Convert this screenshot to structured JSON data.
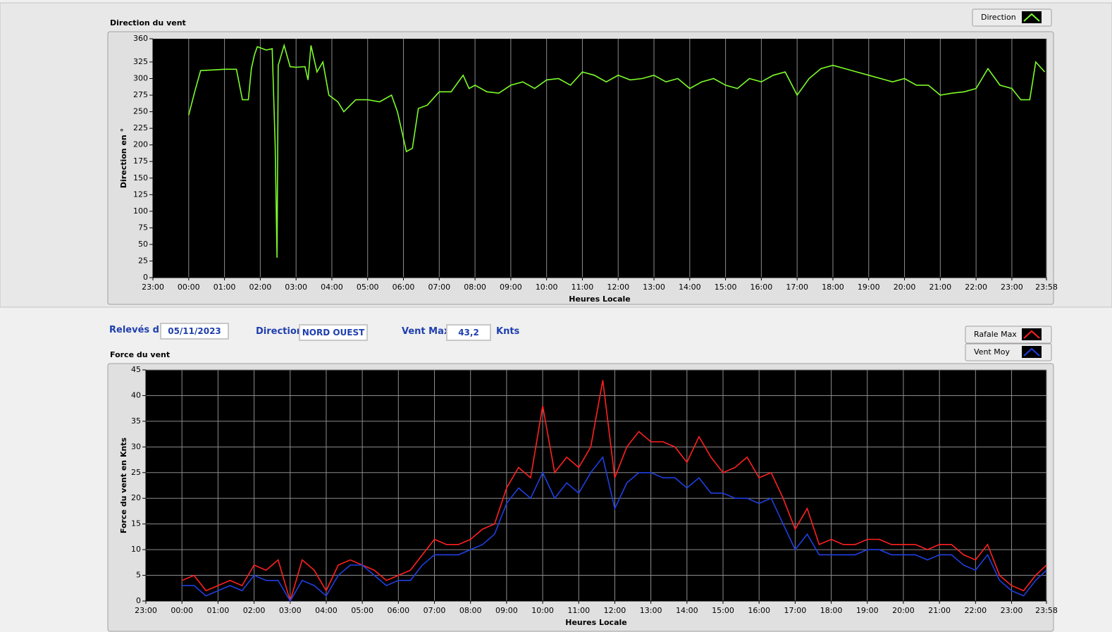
{
  "chart_data": [
    {
      "type": "line",
      "title": "Direction du vent",
      "x_label": "Heures Locale",
      "y_label": "Direction en °",
      "x": [
        "00:00",
        "00:10",
        "00:20",
        "00:40",
        "01:00",
        "01:20",
        "01:30",
        "01:40",
        "01:45",
        "01:50",
        "01:55",
        "02:10",
        "02:20",
        "02:25",
        "02:28",
        "02:30",
        "02:40",
        "02:50",
        "03:00",
        "03:15",
        "03:20",
        "03:25",
        "03:35",
        "03:45",
        "03:55",
        "04:10",
        "04:20",
        "04:40",
        "05:00",
        "05:20",
        "05:40",
        "05:50",
        "06:05",
        "06:15",
        "06:25",
        "06:40",
        "07:00",
        "07:20",
        "07:40",
        "07:50",
        "08:00",
        "08:20",
        "08:40",
        "09:00",
        "09:20",
        "09:40",
        "10:00",
        "10:20",
        "10:40",
        "11:00",
        "11:20",
        "11:40",
        "12:00",
        "12:20",
        "12:40",
        "13:00",
        "13:20",
        "13:40",
        "14:00",
        "14:20",
        "14:40",
        "15:00",
        "15:20",
        "15:40",
        "16:00",
        "16:20",
        "16:40",
        "17:00",
        "17:20",
        "17:40",
        "18:00",
        "18:20",
        "18:40",
        "19:00",
        "19:20",
        "19:40",
        "20:00",
        "20:20",
        "20:40",
        "21:00",
        "21:20",
        "21:40",
        "22:00",
        "22:20",
        "22:40",
        "23:00",
        "23:15",
        "23:30",
        "23:40",
        "23:55"
      ],
      "series": [
        {
          "name": "Direction",
          "color": "#7cfc2a",
          "values": [
            245,
            280,
            312,
            313,
            314,
            314,
            268,
            268,
            315,
            335,
            348,
            343,
            345,
            200,
            30,
            320,
            350,
            318,
            317,
            318,
            298,
            350,
            310,
            325,
            275,
            265,
            250,
            268,
            268,
            265,
            275,
            250,
            190,
            195,
            255,
            260,
            280,
            280,
            305,
            285,
            290,
            280,
            278,
            290,
            295,
            285,
            298,
            300,
            290,
            310,
            305,
            295,
            305,
            298,
            300,
            305,
            295,
            300,
            285,
            295,
            300,
            290,
            285,
            300,
            295,
            305,
            310,
            275,
            300,
            315,
            320,
            315,
            310,
            305,
            300,
            295,
            300,
            290,
            290,
            275,
            278,
            280,
            285,
            315,
            290,
            285,
            268,
            268,
            325,
            310
          ]
        }
      ],
      "xlim": [
        "23:00",
        "23:58"
      ],
      "xticks": [
        "23:00",
        "00:00",
        "01:00",
        "02:00",
        "03:00",
        "04:00",
        "05:00",
        "06:00",
        "07:00",
        "08:00",
        "09:00",
        "10:00",
        "11:00",
        "12:00",
        "13:00",
        "14:00",
        "15:00",
        "16:00",
        "17:00",
        "18:00",
        "19:00",
        "20:00",
        "21:00",
        "22:00",
        "23:00",
        "23:58"
      ],
      "ylim": [
        0,
        360
      ],
      "yticks": [
        0,
        25,
        50,
        75,
        100,
        125,
        150,
        175,
        200,
        225,
        250,
        275,
        300,
        325,
        360
      ],
      "grid_x": true,
      "grid_y": false,
      "legend": "top-right"
    },
    {
      "type": "line",
      "title": "Force du vent",
      "x_label": "Heures Locale",
      "y_label": "Force du vent en Knts",
      "x": [
        "00:00",
        "00:20",
        "00:40",
        "01:00",
        "01:20",
        "01:40",
        "02:00",
        "02:20",
        "02:40",
        "03:00",
        "03:20",
        "03:40",
        "04:00",
        "04:20",
        "04:40",
        "05:00",
        "05:20",
        "05:40",
        "06:00",
        "06:20",
        "06:40",
        "07:00",
        "07:20",
        "07:40",
        "08:00",
        "08:20",
        "08:40",
        "09:00",
        "09:20",
        "09:40",
        "10:00",
        "10:20",
        "10:40",
        "11:00",
        "11:20",
        "11:40",
        "12:00",
        "12:20",
        "12:40",
        "13:00",
        "13:20",
        "13:40",
        "14:00",
        "14:20",
        "14:40",
        "15:00",
        "15:20",
        "15:40",
        "16:00",
        "16:20",
        "16:40",
        "17:00",
        "17:20",
        "17:40",
        "18:00",
        "18:20",
        "18:40",
        "19:00",
        "19:20",
        "19:40",
        "20:00",
        "20:20",
        "20:40",
        "21:00",
        "21:20",
        "21:40",
        "22:00",
        "22:20",
        "22:40",
        "23:00",
        "23:20",
        "23:40",
        "23:58"
      ],
      "series": [
        {
          "name": "Rafale Max",
          "color": "#ff2020",
          "values": [
            4,
            5,
            2,
            3,
            4,
            3,
            7,
            6,
            8,
            0,
            8,
            6,
            2,
            7,
            8,
            7,
            6,
            4,
            5,
            6,
            9,
            12,
            11,
            11,
            12,
            14,
            15,
            22,
            26,
            24,
            38,
            25,
            28,
            26,
            30,
            43,
            24,
            30,
            33,
            31,
            31,
            30,
            27,
            32,
            28,
            25,
            26,
            28,
            24,
            25,
            20,
            14,
            18,
            11,
            12,
            11,
            11,
            12,
            12,
            11,
            11,
            11,
            10,
            11,
            11,
            9,
            8,
            11,
            5,
            3,
            2,
            5,
            7
          ]
        },
        {
          "name": "Vent Moy",
          "color": "#1f3fe0",
          "values": [
            3,
            3,
            1,
            2,
            3,
            2,
            5,
            4,
            4,
            0,
            4,
            3,
            1,
            5,
            7,
            7,
            5,
            3,
            4,
            4,
            7,
            9,
            9,
            9,
            10,
            11,
            13,
            19,
            22,
            20,
            25,
            20,
            23,
            21,
            25,
            28,
            18,
            23,
            25,
            25,
            24,
            24,
            22,
            24,
            21,
            21,
            20,
            20,
            19,
            20,
            15,
            10,
            13,
            9,
            9,
            9,
            9,
            10,
            10,
            9,
            9,
            9,
            8,
            9,
            9,
            7,
            6,
            9,
            4,
            2,
            1,
            4,
            6
          ]
        }
      ],
      "xlim": [
        "23:00",
        "23:58"
      ],
      "xticks": [
        "23:00",
        "00:00",
        "01:00",
        "02:00",
        "03:00",
        "04:00",
        "05:00",
        "06:00",
        "07:00",
        "08:00",
        "09:00",
        "10:00",
        "11:00",
        "12:00",
        "13:00",
        "14:00",
        "15:00",
        "16:00",
        "17:00",
        "18:00",
        "19:00",
        "20:00",
        "21:00",
        "22:00",
        "23:00",
        "23:58"
      ],
      "ylim": [
        0,
        45
      ],
      "yticks": [
        0,
        5,
        10,
        15,
        20,
        25,
        30,
        35,
        40,
        45
      ],
      "grid_x": true,
      "grid_y": true,
      "legend": "top-right"
    }
  ],
  "controls": {
    "date_label": "Relevés du",
    "date": "05/11/2023",
    "direction_label": "Direction",
    "direction": "NORD OUEST",
    "vmax_label": "Vent Max",
    "vmax": "43,2",
    "vmax_unit": "Knts"
  }
}
